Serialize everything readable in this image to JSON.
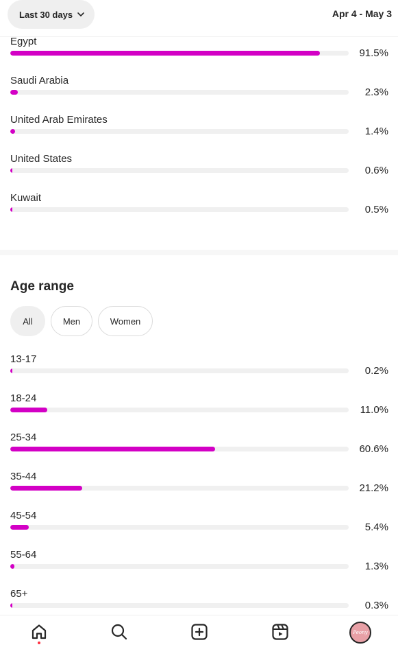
{
  "header": {
    "range_label": "Last 30 days",
    "date_range": "Apr 4 - May 3"
  },
  "countries": [
    {
      "label": "Egypt",
      "value": 91.5,
      "pct": "91.5%"
    },
    {
      "label": "Saudi Arabia",
      "value": 2.3,
      "pct": "2.3%"
    },
    {
      "label": "United Arab Emirates",
      "value": 1.4,
      "pct": "1.4%"
    },
    {
      "label": "United States",
      "value": 0.6,
      "pct": "0.6%"
    },
    {
      "label": "Kuwait",
      "value": 0.5,
      "pct": "0.5%"
    }
  ],
  "age": {
    "title": "Age range",
    "filters": [
      "All",
      "Men",
      "Women"
    ],
    "selected": "All",
    "rows": [
      {
        "label": "13-17",
        "value": 0.2,
        "pct": "0.2%"
      },
      {
        "label": "18-24",
        "value": 11.0,
        "pct": "11.0%"
      },
      {
        "label": "25-34",
        "value": 60.6,
        "pct": "60.6%"
      },
      {
        "label": "35-44",
        "value": 21.2,
        "pct": "21.2%"
      },
      {
        "label": "45-54",
        "value": 5.4,
        "pct": "5.4%"
      },
      {
        "label": "55-64",
        "value": 1.3,
        "pct": "1.3%"
      },
      {
        "label": "65+",
        "value": 0.3,
        "pct": "0.3%"
      }
    ]
  },
  "colors": {
    "bar_fill": "#d300c5",
    "bar_track": "#f0f0f0",
    "notification_dot": "#ff3040"
  },
  "nav": {
    "items": [
      "home-icon",
      "search-icon",
      "create-icon",
      "reels-icon",
      "profile-avatar"
    ],
    "avatar_text": "Peony"
  }
}
